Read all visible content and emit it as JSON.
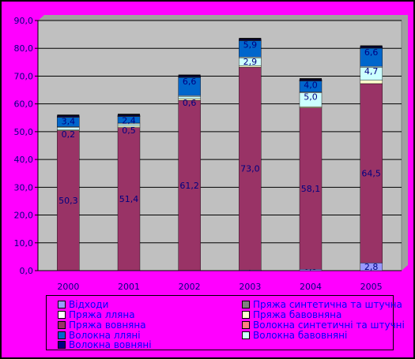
{
  "chart_data": {
    "type": "bar",
    "stacked": true,
    "categories": [
      "2000",
      "2001",
      "2002",
      "2003",
      "2004",
      "2005"
    ],
    "ylim": [
      0,
      90
    ],
    "yticks": [
      "0,0",
      "10,0",
      "20,0",
      "30,0",
      "40,0",
      "50,0",
      "60,0",
      "70,0",
      "80,0",
      "90,0"
    ],
    "ytick_values": [
      0,
      10,
      20,
      30,
      40,
      50,
      60,
      70,
      80,
      90
    ],
    "grid": true,
    "legend_position": "bottom",
    "series": [
      {
        "name": "Відходи",
        "color": "#9999ff",
        "values": [
          0.1,
          0.1,
          0.1,
          0.2,
          0.5,
          2.8
        ],
        "labels": [
          "0,1",
          "0,1",
          "0,1",
          "0,2",
          "0,5",
          "2,8"
        ]
      },
      {
        "name": "Пряжа вовняна",
        "color": "#993366",
        "values": [
          50.3,
          51.4,
          61.2,
          73.0,
          58.1,
          64.5
        ],
        "labels": [
          "50,3",
          "51,4",
          "61,2",
          "73,0",
          "58,1",
          "64,5"
        ]
      },
      {
        "name": "Пряжа бавовняна",
        "color": "#ffffcc",
        "values": [
          0.2,
          0.5,
          0.6,
          0.5,
          0.4,
          1.2
        ],
        "labels": [
          "0,2",
          "0,5",
          "0,6",
          "",
          "",
          ""
        ]
      },
      {
        "name": "Волокна бавовняні",
        "color": "#ccffff",
        "values": [
          0.9,
          0.8,
          0.8,
          2.9,
          5.0,
          4.7
        ],
        "labels": [
          "",
          "",
          "",
          "2,9",
          "5,0",
          "4,7"
        ]
      },
      {
        "name": "Пряжа лляна",
        "color": "#ffffff",
        "values": [
          0.3,
          0.3,
          0.3,
          0.3,
          0.3,
          0.3
        ],
        "labels": [
          "",
          "",
          "",
          "",
          "",
          ""
        ]
      },
      {
        "name": "Волокна лляні",
        "color": "#0066cc",
        "values": [
          3.4,
          2.4,
          6.6,
          5.9,
          4.0,
          6.6
        ],
        "labels": [
          "3,4",
          "2,4",
          "6,6",
          "5,9",
          "4,0",
          "6,6"
        ]
      },
      {
        "name": "Волокна синтетичні та штучні",
        "color": "#ff8080",
        "values": [
          0.1,
          0.1,
          0.1,
          0.1,
          0.1,
          0.1
        ],
        "labels": [
          "",
          "",
          "",
          "",
          "",
          ""
        ]
      },
      {
        "name": "Пряжа синтетична та штучна",
        "color": "#808080",
        "values": [
          0.1,
          0.1,
          0.1,
          0.1,
          0.1,
          0.1
        ],
        "labels": [
          "",
          "",
          "",
          "",
          "",
          ""
        ]
      },
      {
        "name": "Волокна вовняні",
        "color": "#000080",
        "values": [
          0.3,
          0.3,
          0.3,
          0.3,
          0.3,
          0.3
        ],
        "labels": [
          "",
          "",
          "",
          "",
          "",
          ""
        ]
      }
    ],
    "label_color": "#000080",
    "plot_bg": "#c0c0c0",
    "page_bg": "#ff00ff"
  },
  "legend": {
    "left_column": [
      "Відходи",
      "Пряжа лляна",
      "Пряжа вовняна",
      "Волокна лляні",
      "Волокна вовняні"
    ],
    "left_colors": [
      "#9999ff",
      "#ffffff",
      "#993366",
      "#0066cc",
      "#000080"
    ],
    "right_column": [
      "Пряжа синтетична та штучна",
      "Пряжа бавовняна",
      "Волокна синтетичні та штучні",
      "Волокна бавовняні"
    ],
    "right_colors": [
      "#808080",
      "#ffffcc",
      "#ff8080",
      "#ccffff"
    ]
  }
}
